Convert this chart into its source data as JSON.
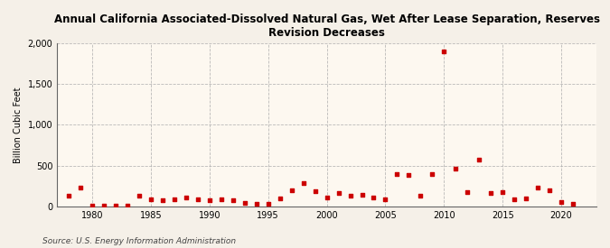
{
  "title": "Annual California Associated-Dissolved Natural Gas, Wet After Lease Separation, Reserves\nRevision Decreases",
  "ylabel": "Billion Cubic Feet",
  "source": "Source: U.S. Energy Information Administration",
  "bg_color": "#f5f0e8",
  "plot_bg_color": "#fdf8f0",
  "marker_color": "#cc0000",
  "years": [
    1978,
    1979,
    1980,
    1981,
    1982,
    1983,
    1984,
    1985,
    1986,
    1987,
    1988,
    1989,
    1990,
    1991,
    1992,
    1993,
    1994,
    1995,
    1996,
    1997,
    1998,
    1999,
    2000,
    2001,
    2002,
    2003,
    2004,
    2005,
    2006,
    2007,
    2008,
    2009,
    2010,
    2011,
    2012,
    2013,
    2014,
    2015,
    2016,
    2017,
    2018,
    2019,
    2020,
    2021
  ],
  "values": [
    130,
    230,
    10,
    5,
    5,
    5,
    130,
    80,
    70,
    80,
    110,
    80,
    70,
    90,
    70,
    40,
    30,
    30,
    100,
    200,
    280,
    190,
    110,
    160,
    130,
    140,
    110,
    80,
    400,
    380,
    130,
    390,
    1900,
    460,
    170,
    570,
    160,
    170,
    90,
    100,
    230,
    200,
    50,
    30
  ],
  "xlim": [
    1977,
    2023
  ],
  "ylim": [
    0,
    2000
  ],
  "yticks": [
    0,
    500,
    1000,
    1500,
    2000
  ],
  "xticks": [
    1980,
    1985,
    1990,
    1995,
    2000,
    2005,
    2010,
    2015,
    2020
  ]
}
